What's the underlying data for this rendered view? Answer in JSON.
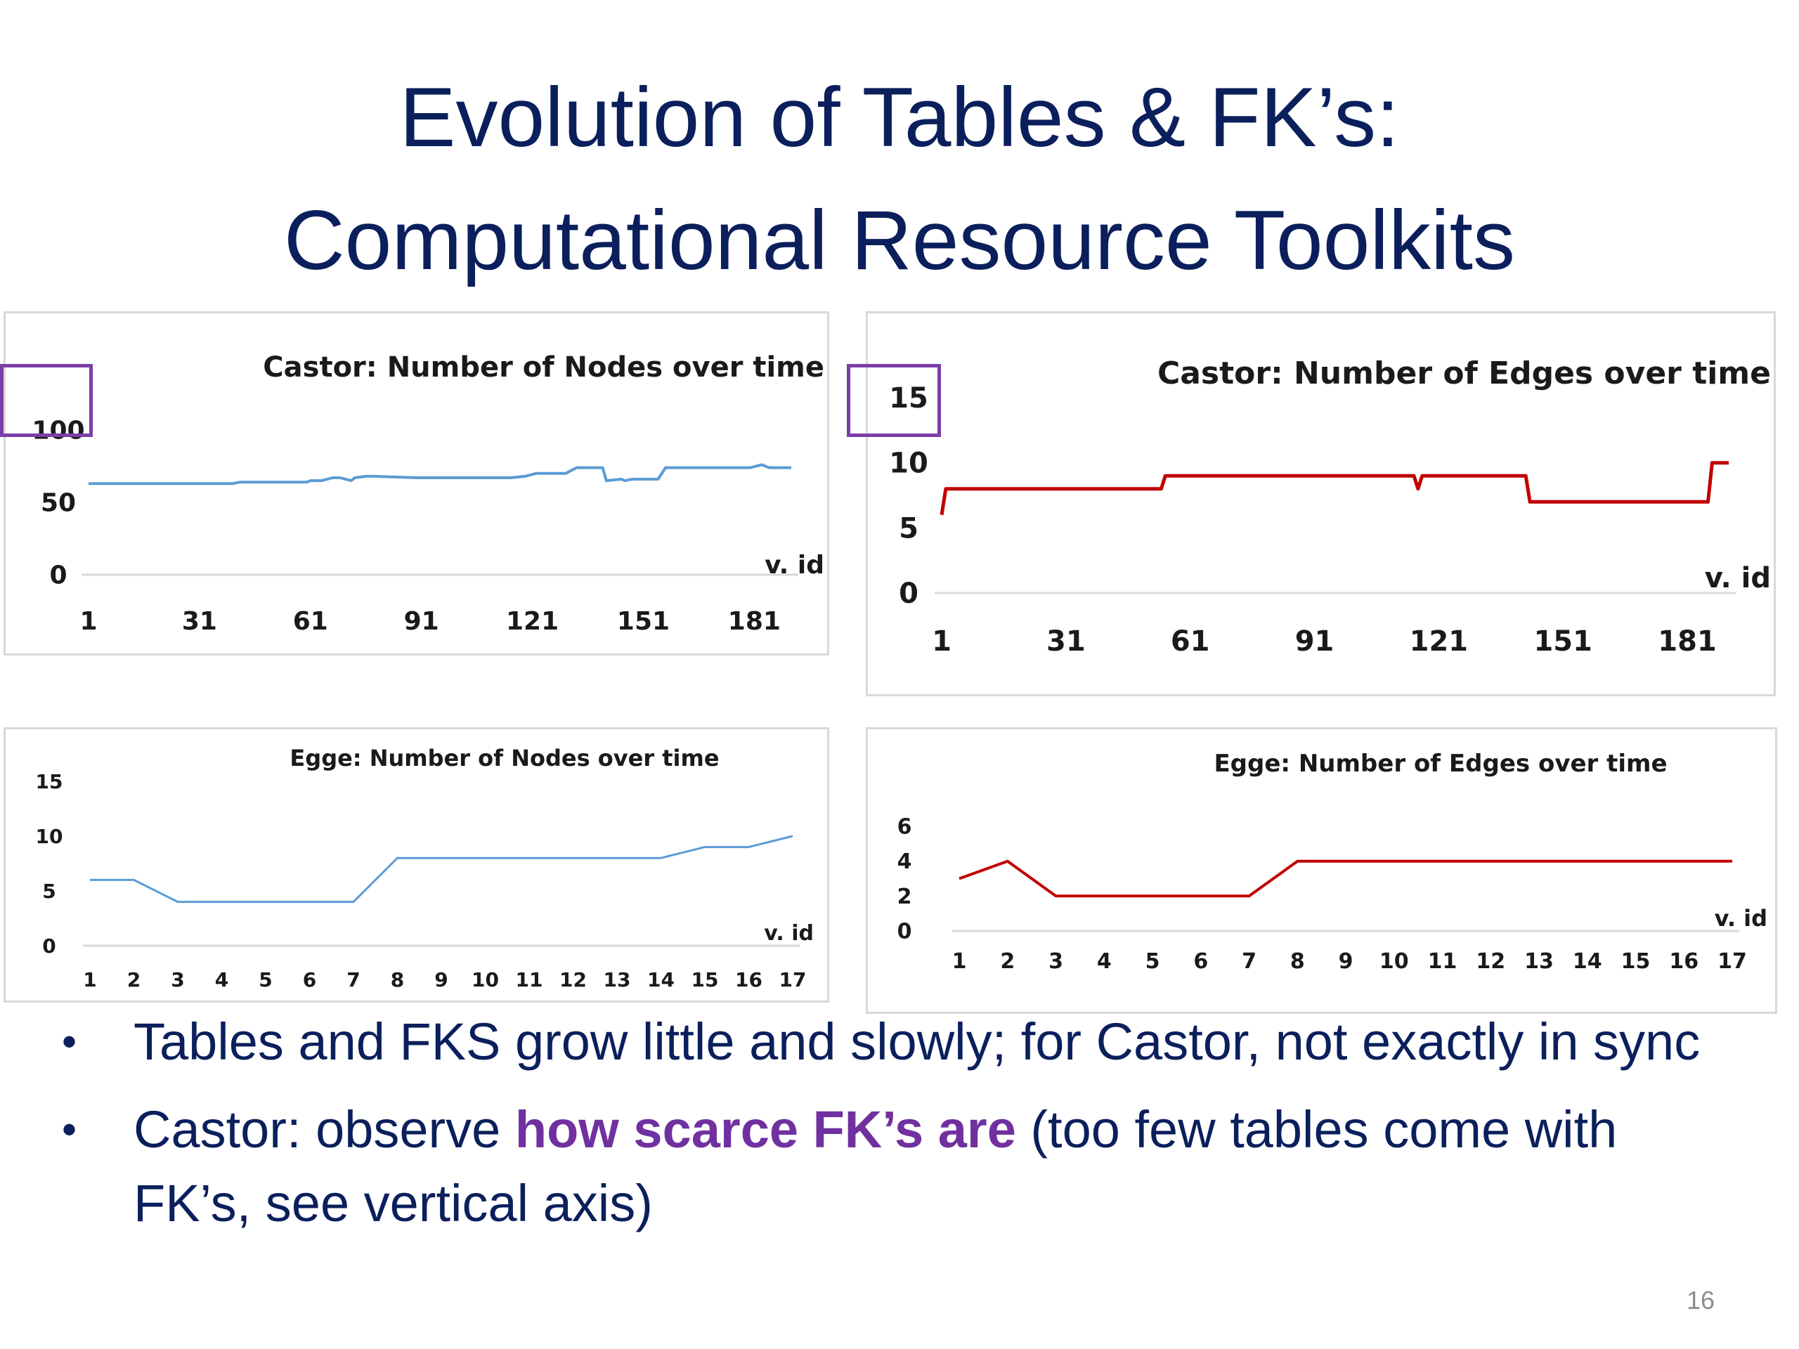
{
  "slide": {
    "title_line1": "Evolution of Tables & FK’s:",
    "title_line2": "Computational Resource Toolkits",
    "page_number": "16"
  },
  "bullets": [
    {
      "text": "Tables and FKS grow little and slowly; for Castor, not exactly in sync"
    },
    {
      "before": "Castor: observe ",
      "highlight": "how scarce FK’s are",
      "after": " (too few tables come with FK’s, see vertical axis)"
    }
  ],
  "bullet_glyph": "•",
  "colors": {
    "title": "#0b1f5c",
    "blue_series": "#5b9bd5",
    "red_series": "#c00000",
    "highlight": "#7030a0"
  },
  "chart_data": [
    {
      "id": "castor-nodes",
      "type": "line",
      "title": "Castor: Number of Nodes over time",
      "xlabel": "v. id",
      "ylabel": "",
      "ylim": [
        0,
        100
      ],
      "yticks": [
        0,
        50,
        100
      ],
      "xlim": [
        1,
        191
      ],
      "xticks": [
        1,
        31,
        61,
        91,
        121,
        151,
        181
      ],
      "color": "#5b9bd5",
      "highlighted_tick": "100",
      "x": [
        1,
        40,
        42,
        60,
        61,
        64,
        67,
        69,
        72,
        73,
        76,
        78,
        90,
        115,
        119,
        122,
        130,
        133,
        140,
        141,
        145,
        146,
        148,
        155,
        157,
        170,
        180,
        183,
        185,
        191
      ],
      "y": [
        63,
        63,
        64,
        64,
        65,
        65,
        67,
        67,
        65,
        67,
        68,
        68,
        67,
        67,
        68,
        70,
        70,
        74,
        74,
        65,
        66,
        65,
        66,
        66,
        74,
        74,
        74,
        76,
        74,
        74
      ]
    },
    {
      "id": "castor-edges",
      "type": "line",
      "title": "Castor: Number of Edges over time",
      "xlabel": "v. id",
      "ylabel": "",
      "ylim": [
        0,
        15
      ],
      "yticks": [
        0,
        5,
        10,
        15
      ],
      "xlim": [
        1,
        191
      ],
      "xticks": [
        1,
        31,
        61,
        91,
        121,
        151,
        181
      ],
      "color": "#c00000",
      "highlighted_tick": "15",
      "x": [
        1,
        2,
        54,
        55,
        115,
        116,
        117,
        142,
        143,
        186,
        187,
        191
      ],
      "y": [
        6,
        8,
        8,
        9,
        9,
        8,
        9,
        9,
        7,
        7,
        10,
        10
      ]
    },
    {
      "id": "egge-nodes",
      "type": "line",
      "title": "Egge: Number of Nodes over time",
      "xlabel": "v. id",
      "ylabel": "",
      "ylim": [
        0,
        15
      ],
      "yticks": [
        0,
        5,
        10,
        15
      ],
      "xlim": [
        1,
        17
      ],
      "xticks": [
        1,
        2,
        3,
        4,
        5,
        6,
        7,
        8,
        9,
        10,
        11,
        12,
        13,
        14,
        15,
        16,
        17
      ],
      "color": "#5b9bd5",
      "x": [
        1,
        2,
        3,
        4,
        5,
        6,
        7,
        8,
        9,
        10,
        11,
        12,
        13,
        14,
        15,
        16,
        17
      ],
      "y": [
        6,
        6,
        4,
        4,
        4,
        4,
        4,
        8,
        8,
        8,
        8,
        8,
        8,
        8,
        9,
        9,
        10
      ]
    },
    {
      "id": "egge-edges",
      "type": "line",
      "title": "Egge: Number of Edges over time",
      "xlabel": "v. id",
      "ylabel": "",
      "ylim": [
        0,
        6
      ],
      "yticks": [
        0,
        2,
        4,
        6
      ],
      "xlim": [
        1,
        17
      ],
      "xticks": [
        1,
        2,
        3,
        4,
        5,
        6,
        7,
        8,
        9,
        10,
        11,
        12,
        13,
        14,
        15,
        16,
        17
      ],
      "color": "#c00000",
      "x": [
        1,
        2,
        3,
        4,
        5,
        6,
        7,
        8,
        9,
        10,
        11,
        12,
        13,
        14,
        15,
        16,
        17
      ],
      "y": [
        3,
        4,
        2,
        2,
        2,
        2,
        2,
        4,
        4,
        4,
        4,
        4,
        4,
        4,
        4,
        4,
        4
      ]
    }
  ]
}
